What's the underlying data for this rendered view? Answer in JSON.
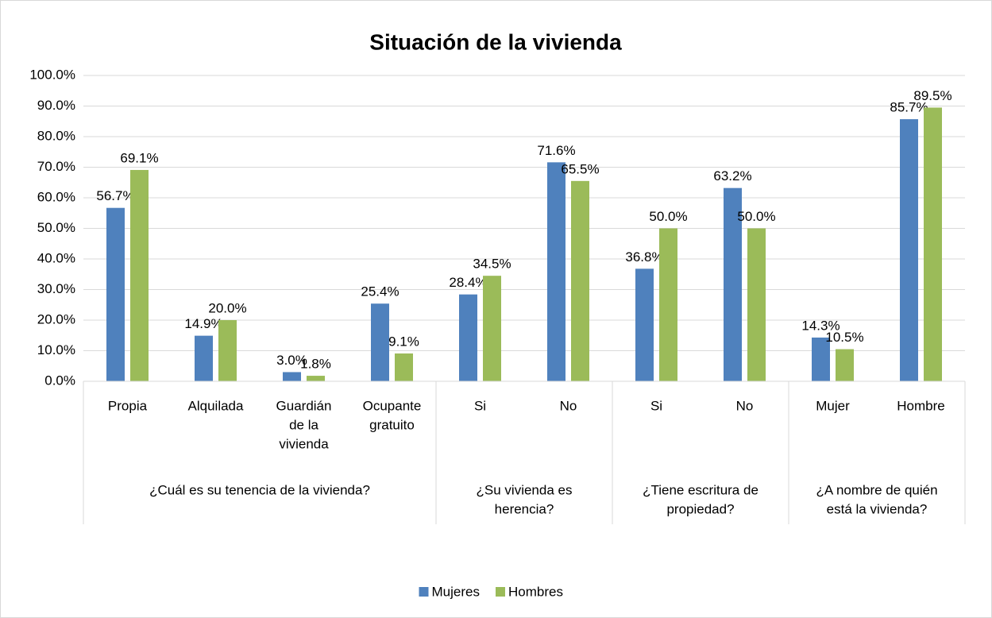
{
  "chart_data": {
    "type": "bar",
    "title": "Situación de la vivienda",
    "groups": [
      {
        "label": [
          "¿Cuál es su tenencia de la vivienda?"
        ],
        "categories": [
          [
            "Propia"
          ],
          [
            "Alquilada"
          ],
          [
            "Guardián",
            "de la",
            "vivienda"
          ],
          [
            "Ocupante",
            "gratuito"
          ]
        ]
      },
      {
        "label": [
          "¿Su vivienda es",
          "herencia?"
        ],
        "categories": [
          [
            "Si"
          ],
          [
            "No"
          ]
        ]
      },
      {
        "label": [
          "¿Tiene escritura de",
          "propiedad?"
        ],
        "categories": [
          [
            "Si"
          ],
          [
            "No"
          ]
        ]
      },
      {
        "label": [
          "¿A nombre de quién",
          "está la vivienda?"
        ],
        "categories": [
          [
            "Mujer"
          ],
          [
            "Hombre"
          ]
        ]
      }
    ],
    "series": [
      {
        "name": "Mujeres",
        "color": "#4f81bd",
        "values": [
          56.7,
          14.9,
          3.0,
          25.4,
          28.4,
          71.6,
          36.8,
          63.2,
          14.3,
          85.7
        ],
        "value_labels": [
          "56.7%",
          "14.9%",
          "3.0%",
          "25.4%",
          "28.4%",
          "71.6%",
          "36.8%",
          "63.2%",
          "14.3%",
          "85.7%"
        ]
      },
      {
        "name": "Hombres",
        "color": "#9bbb59",
        "values": [
          69.1,
          20.0,
          1.8,
          9.1,
          34.5,
          65.5,
          50.0,
          50.0,
          10.5,
          89.5
        ],
        "value_labels": [
          "69.1%",
          "20.0%",
          "1.8%",
          "9.1%",
          "34.5%",
          "65.5%",
          "50.0%",
          "50.0%",
          "10.5%",
          "89.5%"
        ]
      }
    ],
    "ylim": [
      0,
      100
    ],
    "yticks": [
      {
        "value": 0,
        "label": "0.0%"
      },
      {
        "value": 10,
        "label": "10.0%"
      },
      {
        "value": 20,
        "label": "20.0%"
      },
      {
        "value": 30,
        "label": "30.0%"
      },
      {
        "value": 40,
        "label": "40.0%"
      },
      {
        "value": 50,
        "label": "50.0%"
      },
      {
        "value": 60,
        "label": "60.0%"
      },
      {
        "value": 70,
        "label": "70.0%"
      },
      {
        "value": 80,
        "label": "80.0%"
      },
      {
        "value": 90,
        "label": "90.0%"
      },
      {
        "value": 100,
        "label": "100.0%"
      }
    ],
    "grid": true,
    "legend": "bottom"
  }
}
